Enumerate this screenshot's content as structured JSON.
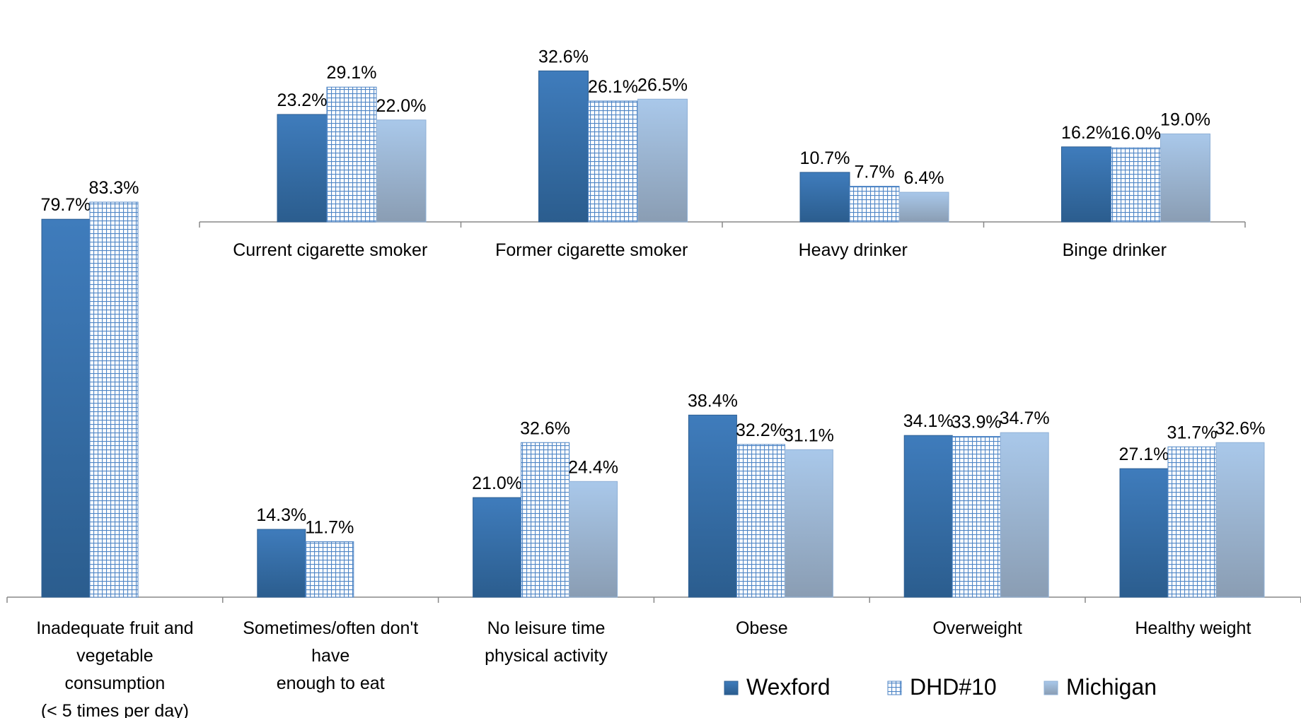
{
  "chart_data": [
    {
      "type": "bar",
      "categories": [
        "Current cigarette smoker",
        "Former cigarette smoker",
        "Heavy drinker",
        "Binge drinker"
      ],
      "series": [
        {
          "name": "Wexford",
          "values": [
            23.2,
            32.6,
            10.7,
            16.2
          ]
        },
        {
          "name": "DHD#10",
          "values": [
            29.1,
            26.1,
            7.7,
            16.0
          ]
        },
        {
          "name": "Michigan",
          "values": [
            22.0,
            26.5,
            6.4,
            19.0
          ]
        }
      ],
      "ylim": [
        0,
        40
      ],
      "grid": false
    },
    {
      "type": "bar",
      "categories": [
        [
          "Inadequate fruit and",
          "vegetable",
          "consumption",
          "(< 5 times per day)"
        ],
        [
          "Sometimes/often don't",
          "have",
          "enough to eat"
        ],
        [
          "No leisure time",
          "physical activity"
        ],
        [
          "Obese"
        ],
        [
          "Overweight"
        ],
        [
          "Healthy weight"
        ]
      ],
      "series": [
        {
          "name": "Wexford",
          "values": [
            79.7,
            14.3,
            21.0,
            38.4,
            34.1,
            27.1
          ]
        },
        {
          "name": "DHD#10",
          "values": [
            83.3,
            11.7,
            32.6,
            32.2,
            33.9,
            31.7
          ]
        },
        {
          "name": "Michigan",
          "values": [
            null,
            null,
            24.4,
            31.1,
            34.7,
            32.6
          ]
        }
      ],
      "ylim": [
        0,
        90
      ],
      "grid": false
    }
  ],
  "legend": {
    "placement": "bottom-right",
    "items": [
      {
        "label": "Wexford",
        "style": "solid"
      },
      {
        "label": "DHD#10",
        "style": "grid"
      },
      {
        "label": "Michigan",
        "style": "light"
      }
    ]
  },
  "colors": {
    "wexford_top": "#3f7cbc",
    "wexford_bottom": "#2b5d8e",
    "wexford_stroke": "#2d5f93",
    "dhd_line": "#4f86c6",
    "dhd_fill": "#ffffff",
    "michigan_top": "#a9c8ea",
    "michigan_bottom": "#8a9db3",
    "axis": "#888888"
  },
  "value_suffix": "%"
}
